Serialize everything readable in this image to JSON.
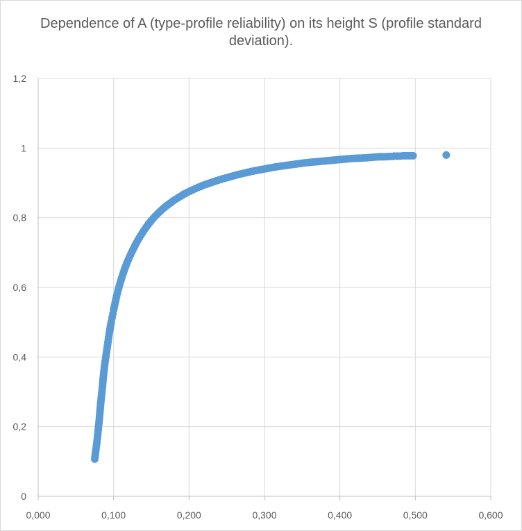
{
  "chart_data": {
    "type": "scatter",
    "title": "Dependence of A (type-profile reliability) on its height S (profile standard deviation).",
    "xlabel": "",
    "ylabel": "",
    "xlim": [
      0,
      0.6
    ],
    "ylim": [
      0,
      1.2
    ],
    "x_ticks": [
      "0,000",
      "0,100",
      "0,200",
      "0,300",
      "0,400",
      "0,500",
      "0,600"
    ],
    "y_ticks": [
      "0",
      "0,2",
      "0,4",
      "0,6",
      "0,8",
      "1",
      "1,2"
    ],
    "grid": true,
    "legend": "none",
    "marker_color": "#5b9bd5",
    "series": [
      {
        "x": [
          0.075,
          0.076,
          0.078,
          0.079,
          0.08,
          0.081,
          0.082,
          0.083,
          0.084,
          0.085,
          0.086,
          0.087,
          0.088,
          0.089,
          0.09,
          0.091,
          0.092,
          0.093,
          0.094,
          0.095,
          0.096,
          0.097,
          0.098,
          0.099,
          0.1,
          0.102,
          0.104,
          0.106,
          0.108,
          0.11,
          0.112,
          0.115,
          0.118,
          0.121,
          0.124,
          0.127,
          0.13,
          0.134,
          0.138,
          0.142,
          0.146,
          0.15,
          0.155,
          0.16,
          0.165,
          0.17,
          0.175,
          0.18,
          0.186,
          0.192,
          0.198,
          0.205,
          0.212,
          0.22,
          0.228,
          0.236,
          0.245,
          0.255,
          0.265,
          0.275,
          0.285,
          0.295,
          0.305,
          0.315,
          0.325,
          0.335,
          0.345,
          0.355,
          0.365,
          0.375,
          0.385,
          0.395,
          0.405,
          0.415,
          0.425,
          0.435,
          0.445,
          0.452,
          0.458,
          0.469,
          0.472,
          0.48,
          0.484,
          0.49,
          0.497,
          0.541
        ],
        "y": [
          0.107,
          0.125,
          0.158,
          0.178,
          0.2,
          0.22,
          0.245,
          0.27,
          0.29,
          0.31,
          0.335,
          0.355,
          0.375,
          0.39,
          0.405,
          0.42,
          0.435,
          0.45,
          0.465,
          0.478,
          0.49,
          0.502,
          0.513,
          0.524,
          0.535,
          0.555,
          0.575,
          0.592,
          0.608,
          0.622,
          0.636,
          0.655,
          0.672,
          0.687,
          0.701,
          0.714,
          0.727,
          0.742,
          0.756,
          0.769,
          0.781,
          0.792,
          0.804,
          0.815,
          0.825,
          0.834,
          0.842,
          0.85,
          0.858,
          0.866,
          0.873,
          0.88,
          0.887,
          0.894,
          0.9,
          0.906,
          0.912,
          0.918,
          0.924,
          0.929,
          0.934,
          0.938,
          0.942,
          0.946,
          0.949,
          0.952,
          0.955,
          0.958,
          0.96,
          0.962,
          0.964,
          0.966,
          0.968,
          0.97,
          0.971,
          0.972,
          0.974,
          0.975,
          0.975,
          0.976,
          0.977,
          0.977,
          0.978,
          0.978,
          0.978,
          0.98
        ]
      }
    ]
  }
}
